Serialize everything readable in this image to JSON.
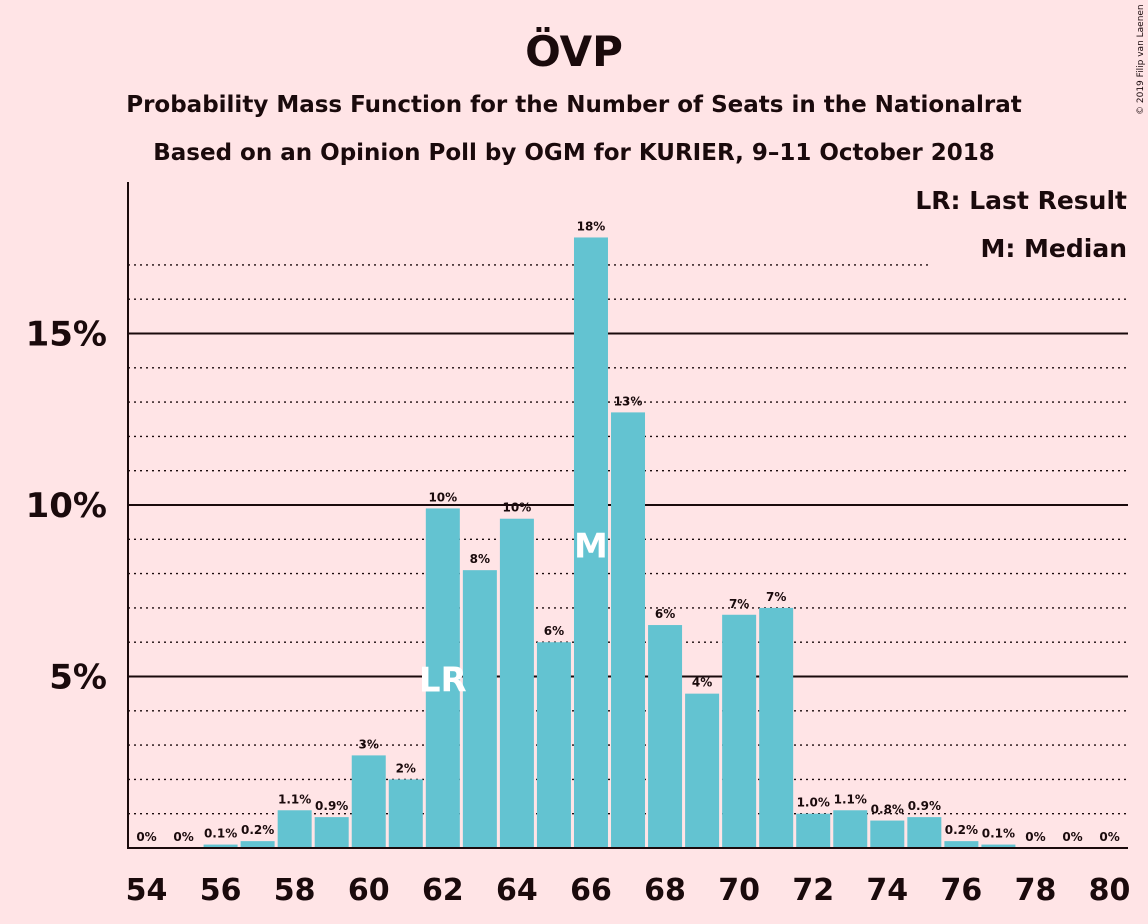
{
  "chart_data": {
    "type": "bar",
    "title": "ÖVP",
    "subtitle_line1": "Probability Mass Function for the Number of Seats in the Nationalrat",
    "subtitle_line2": "Based on an Opinion Poll by OGM for KURIER, 9–11 October 2018",
    "copyright": "© 2019 Filip van Laenen",
    "legend": [
      "LR: Last Result",
      "M: Median"
    ],
    "x": [
      54,
      55,
      56,
      57,
      58,
      59,
      60,
      61,
      62,
      63,
      64,
      65,
      66,
      67,
      68,
      69,
      70,
      71,
      72,
      73,
      74,
      75,
      76,
      77,
      78,
      79,
      80
    ],
    "values": [
      0,
      0,
      0.1,
      0.2,
      1.1,
      0.9,
      2.7,
      2.0,
      9.9,
      8.1,
      9.6,
      6.0,
      17.8,
      12.7,
      6.5,
      4.5,
      6.8,
      7.0,
      1.0,
      1.1,
      0.8,
      0.9,
      0.2,
      0.1,
      0,
      0,
      0
    ],
    "data_labels": [
      "0%",
      "0%",
      "0.1%",
      "0.2%",
      "1.1%",
      "0.9%",
      "3%",
      "2%",
      "10%",
      "8%",
      "10%",
      "6%",
      "18%",
      "13%",
      "6%",
      "4%",
      "7%",
      "7%",
      "1.0%",
      "1.1%",
      "0.8%",
      "0.9%",
      "0.2%",
      "0.1%",
      "0%",
      "0%",
      "0%"
    ],
    "xticks": [
      "54",
      "56",
      "58",
      "60",
      "62",
      "64",
      "66",
      "68",
      "70",
      "72",
      "74",
      "76",
      "78",
      "80"
    ],
    "yticks": [
      "5%",
      "10%",
      "15%"
    ],
    "ytick_values": [
      5,
      10,
      15
    ],
    "ylim": [
      0,
      19.5
    ],
    "last_result_seat": 62,
    "last_result_marker": "LR",
    "median_seat": 66,
    "median_marker": "M",
    "bar_color": "#63c3d1",
    "background_color": "#ffe4e6"
  }
}
